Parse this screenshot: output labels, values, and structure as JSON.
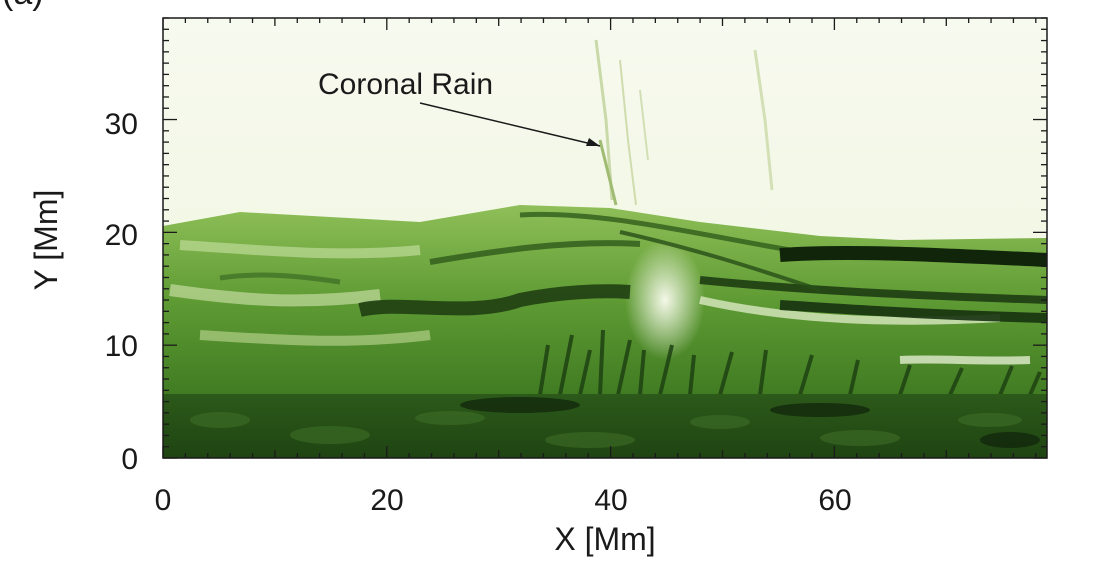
{
  "figure": {
    "panel_label": "(a)",
    "annotation": "Coronal Rain",
    "xlabel": "X [Mm]",
    "ylabel": "Y [Mm]",
    "x_ticks": [
      "0",
      "20",
      "40",
      "60"
    ],
    "y_ticks": [
      "0",
      "10",
      "20",
      "30"
    ],
    "xlim": [
      0,
      79
    ],
    "ylim": [
      0,
      39
    ],
    "colormap": "green",
    "grid": false
  }
}
